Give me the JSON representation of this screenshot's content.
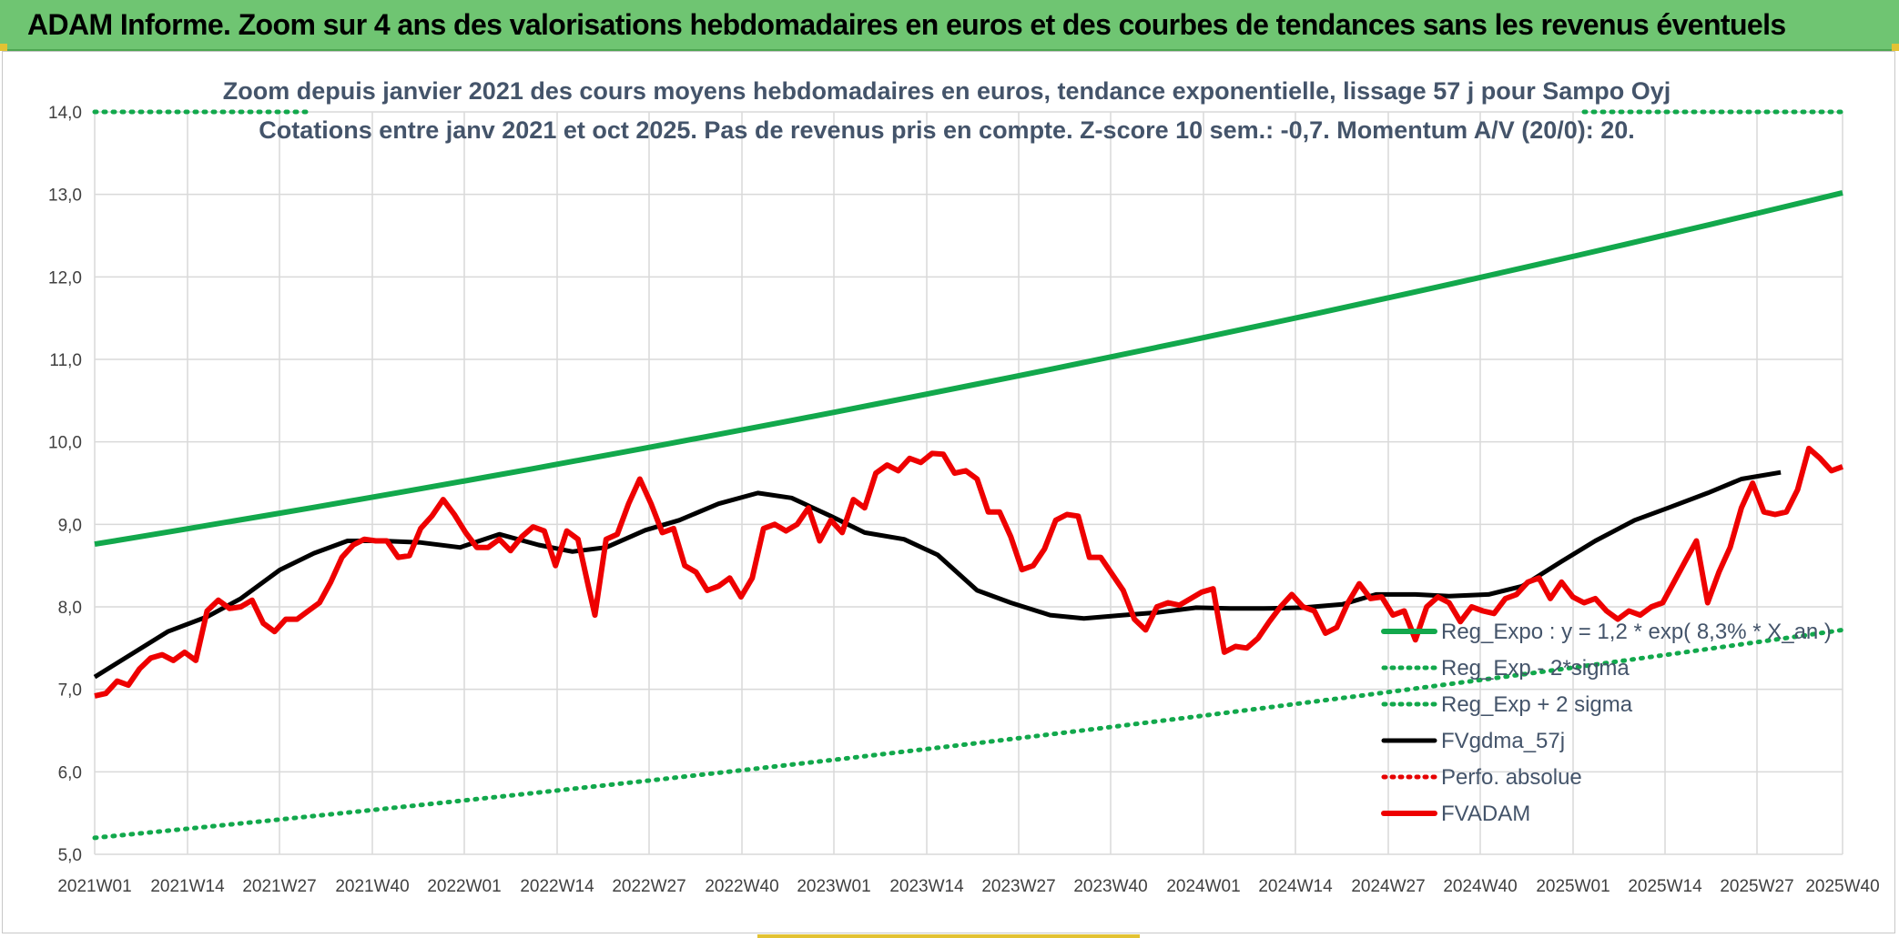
{
  "banner": {
    "title": "ADAM Informe. Zoom sur 4 ans des valorisations hebdomadaires en euros et des courbes de tendances sans les revenus éventuels"
  },
  "chart_data": {
    "type": "line",
    "title_line1": "Zoom depuis janvier 2021 des cours moyens hebdomadaires en euros, tendance exponentielle, lissage 57 j pour Sampo Oyj",
    "title_line2": "Cotations entre janv 2021 et oct 2025. Pas de revenus pris en compte. Z-score 10 sem.: -0,7. Momentum A/V (20/0): 20.",
    "ylim": [
      5,
      14
    ],
    "y_ticks": [
      "5,0",
      "6,0",
      "7,0",
      "8,0",
      "9,0",
      "10,0",
      "11,0",
      "12,0",
      "13,0",
      "14,0"
    ],
    "x_ticks": [
      "2021W01",
      "2021W14",
      "2021W27",
      "2021W40",
      "2022W01",
      "2022W14",
      "2022W27",
      "2022W40",
      "2023W01",
      "2023W14",
      "2023W27",
      "2023W40",
      "2024W01",
      "2024W14",
      "2024W27",
      "2024W40",
      "2025W01",
      "2025W14",
      "2025W27",
      "2025W40"
    ],
    "grid": true,
    "legend_position": "right",
    "colors": {
      "trend": "#12a84c",
      "sigma": "#12a84c",
      "smooth": "#000000",
      "perfo": "#e60000",
      "fvadam": "#ee0000"
    },
    "series": [
      {
        "name": "Reg_Expo : y = 1,2 * exp( 8,3% * X_an )",
        "style": "solid",
        "x": [
          0,
          243
        ],
        "start": 8.76,
        "end": 13.02
      },
      {
        "name": "Reg_Exp - 2*sigma",
        "style": "dotted",
        "x": [
          0,
          243
        ],
        "start": 5.2,
        "end": 7.72
      },
      {
        "name": "Reg_Exp + 2 sigma",
        "style": "dotted",
        "x": [
          0,
          243
        ],
        "start": 14.0,
        "end": 14.0,
        "note_visible_segments": [
          [
            0,
            26
          ],
          [
            205,
            243
          ]
        ]
      },
      {
        "name": "FVgdma_57j",
        "style": "solid",
        "points": [
          [
            0,
            7.15
          ],
          [
            13,
            7.7
          ],
          [
            20,
            7.88
          ],
          [
            26,
            8.1
          ],
          [
            33,
            8.45
          ],
          [
            39,
            8.65
          ],
          [
            45,
            8.8
          ],
          [
            51,
            8.8
          ],
          [
            58,
            8.78
          ],
          [
            65,
            8.72
          ],
          [
            72,
            8.88
          ],
          [
            79,
            8.75
          ],
          [
            85,
            8.67
          ],
          [
            91,
            8.72
          ],
          [
            98,
            8.93
          ],
          [
            104,
            9.05
          ],
          [
            111,
            9.25
          ],
          [
            118,
            9.38
          ],
          [
            124,
            9.32
          ],
          [
            131,
            9.1
          ],
          [
            137,
            8.9
          ],
          [
            144,
            8.82
          ],
          [
            150,
            8.63
          ],
          [
            157,
            8.2
          ],
          [
            163,
            8.05
          ],
          [
            170,
            7.9
          ],
          [
            176,
            7.86
          ],
          [
            183,
            7.9
          ],
          [
            189,
            7.93
          ],
          [
            196,
            7.99
          ],
          [
            202,
            7.98
          ],
          [
            208,
            7.98
          ],
          [
            215,
            7.99
          ],
          [
            222,
            8.03
          ],
          [
            228,
            8.15
          ],
          [
            235,
            8.15
          ],
          [
            241,
            8.13
          ],
          [
            248,
            8.15
          ],
          [
            254,
            8.25
          ],
          [
            261,
            8.55
          ],
          [
            267,
            8.8
          ],
          [
            274,
            9.05
          ],
          [
            280,
            9.2
          ],
          [
            287,
            9.38
          ],
          [
            293,
            9.55
          ],
          [
            300,
            9.63
          ]
        ]
      },
      {
        "name": "Perfo. absolue",
        "style": "dotted"
      },
      {
        "name": "FVADAM",
        "style": "solid",
        "points": [
          [
            0,
            6.92
          ],
          [
            2,
            6.95
          ],
          [
            4,
            7.1
          ],
          [
            6,
            7.05
          ],
          [
            8,
            7.25
          ],
          [
            10,
            7.38
          ],
          [
            12,
            7.42
          ],
          [
            14,
            7.35
          ],
          [
            16,
            7.45
          ],
          [
            18,
            7.35
          ],
          [
            20,
            7.95
          ],
          [
            22,
            8.08
          ],
          [
            24,
            7.98
          ],
          [
            26,
            8.0
          ],
          [
            28,
            8.08
          ],
          [
            30,
            7.8
          ],
          [
            32,
            7.7
          ],
          [
            34,
            7.85
          ],
          [
            36,
            7.85
          ],
          [
            38,
            7.95
          ],
          [
            40,
            8.05
          ],
          [
            42,
            8.3
          ],
          [
            44,
            8.6
          ],
          [
            46,
            8.75
          ],
          [
            48,
            8.82
          ],
          [
            50,
            8.8
          ],
          [
            52,
            8.8
          ],
          [
            54,
            8.6
          ],
          [
            56,
            8.62
          ],
          [
            58,
            8.95
          ],
          [
            60,
            9.1
          ],
          [
            62,
            9.3
          ],
          [
            64,
            9.12
          ],
          [
            66,
            8.9
          ],
          [
            68,
            8.72
          ],
          [
            70,
            8.72
          ],
          [
            72,
            8.82
          ],
          [
            74,
            8.68
          ],
          [
            76,
            8.85
          ],
          [
            78,
            8.97
          ],
          [
            80,
            8.92
          ],
          [
            82,
            8.5
          ],
          [
            84,
            8.92
          ],
          [
            86,
            8.82
          ],
          [
            88,
            8.2
          ],
          [
            89,
            7.9
          ],
          [
            91,
            8.82
          ],
          [
            93,
            8.88
          ],
          [
            95,
            9.25
          ],
          [
            97,
            9.55
          ],
          [
            99,
            9.25
          ],
          [
            101,
            8.9
          ],
          [
            103,
            8.95
          ],
          [
            105,
            8.5
          ],
          [
            107,
            8.42
          ],
          [
            109,
            8.2
          ],
          [
            111,
            8.25
          ],
          [
            113,
            8.35
          ],
          [
            115,
            8.12
          ],
          [
            117,
            8.35
          ],
          [
            119,
            8.95
          ],
          [
            121,
            9.0
          ],
          [
            123,
            8.92
          ],
          [
            125,
            9.0
          ],
          [
            127,
            9.2
          ],
          [
            129,
            8.8
          ],
          [
            131,
            9.05
          ],
          [
            133,
            8.9
          ],
          [
            135,
            9.3
          ],
          [
            137,
            9.2
          ],
          [
            139,
            9.62
          ],
          [
            141,
            9.72
          ],
          [
            143,
            9.65
          ],
          [
            145,
            9.8
          ],
          [
            147,
            9.75
          ],
          [
            149,
            9.86
          ],
          [
            151,
            9.85
          ],
          [
            153,
            9.62
          ],
          [
            155,
            9.65
          ],
          [
            157,
            9.55
          ],
          [
            159,
            9.15
          ],
          [
            161,
            9.15
          ],
          [
            163,
            8.85
          ],
          [
            165,
            8.45
          ],
          [
            167,
            8.5
          ],
          [
            169,
            8.7
          ],
          [
            171,
            9.05
          ],
          [
            173,
            9.12
          ],
          [
            175,
            9.1
          ],
          [
            177,
            8.6
          ],
          [
            179,
            8.6
          ],
          [
            181,
            8.4
          ],
          [
            183,
            8.2
          ],
          [
            185,
            7.85
          ],
          [
            187,
            7.72
          ],
          [
            189,
            8.0
          ],
          [
            191,
            8.05
          ],
          [
            193,
            8.02
          ],
          [
            195,
            8.1
          ],
          [
            197,
            8.18
          ],
          [
            199,
            8.22
          ],
          [
            201,
            7.45
          ],
          [
            203,
            7.52
          ],
          [
            205,
            7.5
          ],
          [
            207,
            7.62
          ],
          [
            209,
            7.82
          ],
          [
            211,
            8.0
          ],
          [
            213,
            8.15
          ],
          [
            215,
            8.0
          ],
          [
            217,
            7.95
          ],
          [
            219,
            7.68
          ],
          [
            221,
            7.75
          ],
          [
            223,
            8.05
          ],
          [
            225,
            8.28
          ],
          [
            227,
            8.1
          ],
          [
            229,
            8.12
          ],
          [
            231,
            7.9
          ],
          [
            233,
            7.95
          ],
          [
            235,
            7.6
          ],
          [
            237,
            8.0
          ],
          [
            239,
            8.12
          ],
          [
            241,
            8.05
          ],
          [
            243,
            7.82
          ],
          [
            245,
            8.0
          ],
          [
            247,
            7.95
          ],
          [
            249,
            7.92
          ],
          [
            251,
            8.1
          ],
          [
            253,
            8.15
          ],
          [
            255,
            8.3
          ],
          [
            257,
            8.35
          ],
          [
            259,
            8.1
          ],
          [
            261,
            8.3
          ],
          [
            263,
            8.12
          ],
          [
            265,
            8.05
          ],
          [
            267,
            8.1
          ],
          [
            269,
            7.95
          ],
          [
            271,
            7.85
          ],
          [
            273,
            7.95
          ],
          [
            275,
            7.9
          ],
          [
            277,
            8.0
          ],
          [
            279,
            8.05
          ],
          [
            281,
            8.3
          ],
          [
            283,
            8.55
          ],
          [
            285,
            8.8
          ],
          [
            287,
            8.05
          ],
          [
            289,
            8.42
          ],
          [
            291,
            8.72
          ],
          [
            293,
            9.2
          ],
          [
            295,
            9.5
          ],
          [
            297,
            9.15
          ],
          [
            299,
            9.12
          ],
          [
            301,
            9.15
          ],
          [
            303,
            9.42
          ],
          [
            305,
            9.92
          ],
          [
            307,
            9.8
          ],
          [
            309,
            9.65
          ],
          [
            311,
            9.7
          ]
        ]
      }
    ]
  }
}
